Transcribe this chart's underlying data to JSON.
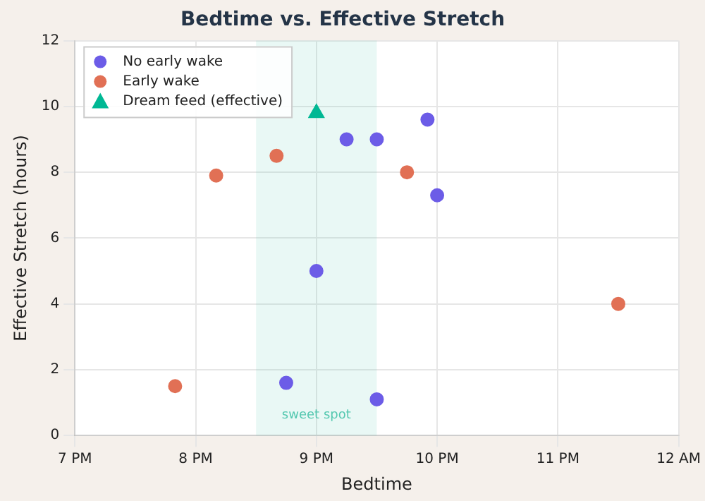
{
  "chart_data": {
    "type": "scatter",
    "title": "Bedtime vs. Effective Stretch",
    "xlabel": "Bedtime",
    "ylabel": "Effective Stretch (hours)",
    "series": [
      {
        "name": "No early wake",
        "color": "#6c5ce7",
        "marker": "circle",
        "x": [
          9.25,
          9.5,
          9.92,
          10.0,
          9.0,
          8.75,
          9.5
        ],
        "values": [
          9.0,
          9.0,
          9.6,
          7.3,
          5.0,
          1.6,
          1.1
        ]
      },
      {
        "name": "Early wake",
        "color": "#e17055",
        "marker": "circle",
        "x": [
          8.17,
          8.67,
          9.75,
          11.5,
          7.83
        ],
        "values": [
          7.9,
          8.5,
          8.0,
          4.0,
          1.5
        ]
      },
      {
        "name": "Dream feed (effective)",
        "color": "#00b894",
        "marker": "triangle",
        "x": [
          9.0
        ],
        "values": [
          9.8
        ]
      }
    ],
    "xlim": [
      7,
      12
    ],
    "xticks": [
      {
        "value": 7,
        "label": "7 PM"
      },
      {
        "value": 8,
        "label": "8 PM"
      },
      {
        "value": 9,
        "label": "9 PM"
      },
      {
        "value": 10,
        "label": "10 PM"
      },
      {
        "value": 11,
        "label": "11 PM"
      },
      {
        "value": 12,
        "label": "12 AM"
      }
    ],
    "ylim": [
      0,
      12
    ],
    "yticks": [
      0,
      2,
      4,
      6,
      8,
      10,
      12
    ],
    "bands": [
      {
        "axis": "x",
        "from": 8.5,
        "to": 9.5,
        "label": "sweet spot",
        "color": "#55c8b0"
      }
    ],
    "grid": true,
    "legend": "top left"
  }
}
